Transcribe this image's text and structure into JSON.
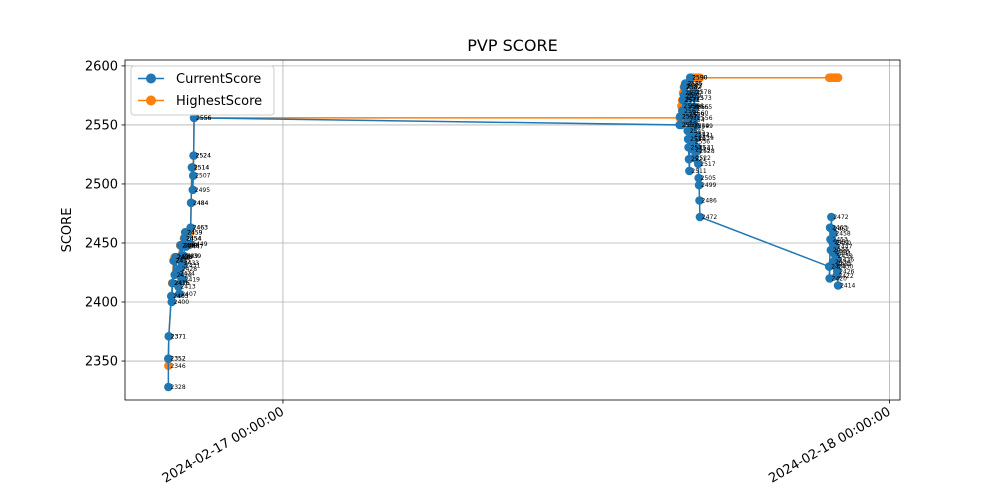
{
  "chart_data": {
    "type": "line",
    "title": "PVP SCORE",
    "xlabel": "",
    "ylabel": "SCORE",
    "ylim": [
      2317,
      2605
    ],
    "xlim": [
      "2024-02-16 17:45",
      "2024-02-18 00:25"
    ],
    "yticks": [
      2350,
      2400,
      2450,
      2500,
      2550,
      2600
    ],
    "xticks": [
      {
        "t": "2024-02-17 00:00",
        "label": "2024-02-17 00:00:00"
      },
      {
        "t": "2024-02-18 00:00",
        "label": "2024-02-18 00:00:00"
      }
    ],
    "grid": true,
    "legend_position": "upper left",
    "series": [
      {
        "name": "CurrentScore",
        "color": "#1f77b4",
        "points": [
          [
            "2024-02-16 19:28",
            2328
          ],
          [
            "2024-02-16 19:28",
            2352
          ],
          [
            "2024-02-16 19:29",
            2371
          ],
          [
            "2024-02-16 19:35",
            2405
          ],
          [
            "2024-02-16 19:36",
            2400
          ],
          [
            "2024-02-16 19:38",
            2416
          ],
          [
            "2024-02-16 19:41",
            2435
          ],
          [
            "2024-02-16 19:43",
            2423
          ],
          [
            "2024-02-16 19:45",
            2438
          ],
          [
            "2024-02-16 19:50",
            2424
          ],
          [
            "2024-02-16 19:52",
            2413
          ],
          [
            "2024-02-16 19:54",
            2407
          ],
          [
            "2024-02-16 19:55",
            2428
          ],
          [
            "2024-02-16 19:57",
            2448
          ],
          [
            "2024-02-16 19:58",
            2439
          ],
          [
            "2024-02-16 20:00",
            2433
          ],
          [
            "2024-02-16 20:01",
            2448
          ],
          [
            "2024-02-16 20:02",
            2419
          ],
          [
            "2024-02-16 20:03",
            2431
          ],
          [
            "2024-02-16 20:05",
            2439
          ],
          [
            "2024-02-16 20:06",
            2454
          ],
          [
            "2024-02-16 20:08",
            2459
          ],
          [
            "2024-02-16 20:10",
            2447
          ],
          [
            "2024-02-16 20:20",
            2449
          ],
          [
            "2024-02-16 20:21",
            2463
          ],
          [
            "2024-02-16 20:22",
            2484
          ],
          [
            "2024-02-16 20:24",
            2514
          ],
          [
            "2024-02-16 20:26",
            2495
          ],
          [
            "2024-02-16 20:27",
            2507
          ],
          [
            "2024-02-16 20:28",
            2524
          ],
          [
            "2024-02-16 20:29",
            2556
          ],
          [
            "2024-02-17 15:42",
            2550
          ],
          [
            "2024-02-17 15:43",
            2557
          ],
          [
            "2024-02-17 15:46",
            2550
          ],
          [
            "2024-02-17 15:48",
            2562
          ],
          [
            "2024-02-17 15:50",
            2571
          ],
          [
            "2024-02-17 15:52",
            2575
          ],
          [
            "2024-02-17 15:53",
            2582
          ],
          [
            "2024-02-17 15:55",
            2585
          ],
          [
            "2024-02-17 15:56",
            2577
          ],
          [
            "2024-02-17 15:57",
            2573
          ],
          [
            "2024-02-17 15:58",
            2566
          ],
          [
            "2024-02-17 15:59",
            2559
          ],
          [
            "2024-02-17 16:00",
            2554
          ],
          [
            "2024-02-17 16:01",
            2545
          ],
          [
            "2024-02-17 16:02",
            2538
          ],
          [
            "2024-02-17 16:03",
            2531
          ],
          [
            "2024-02-17 16:04",
            2521
          ],
          [
            "2024-02-17 16:05",
            2511
          ],
          [
            "2024-02-17 16:07",
            2590
          ],
          [
            "2024-02-17 16:09",
            2560
          ],
          [
            "2024-02-17 16:10",
            2565
          ],
          [
            "2024-02-17 16:11",
            2549
          ],
          [
            "2024-02-17 16:12",
            2542
          ],
          [
            "2024-02-17 16:13",
            2536
          ],
          [
            "2024-02-17 16:14",
            2529
          ],
          [
            "2024-02-17 16:15",
            2522
          ],
          [
            "2024-02-17 16:16",
            2578
          ],
          [
            "2024-02-17 16:17",
            2573
          ],
          [
            "2024-02-17 16:18",
            2565
          ],
          [
            "2024-02-17 16:19",
            2556
          ],
          [
            "2024-02-17 16:20",
            2549
          ],
          [
            "2024-02-17 16:21",
            2541
          ],
          [
            "2024-02-17 16:22",
            2539
          ],
          [
            "2024-02-17 16:23",
            2531
          ],
          [
            "2024-02-17 16:24",
            2528
          ],
          [
            "2024-02-17 16:26",
            2517
          ],
          [
            "2024-02-17 16:27",
            2505
          ],
          [
            "2024-02-17 16:28",
            2499
          ],
          [
            "2024-02-17 16:29",
            2486
          ],
          [
            "2024-02-17 16:30",
            2472
          ],
          [
            "2024-02-17 21:37",
            2430
          ],
          [
            "2024-02-17 21:38",
            2420
          ],
          [
            "2024-02-17 21:39",
            2463
          ],
          [
            "2024-02-17 21:40",
            2453
          ],
          [
            "2024-02-17 21:41",
            2444
          ],
          [
            "2024-02-17 21:42",
            2472
          ],
          [
            "2024-02-17 21:43",
            2462
          ],
          [
            "2024-02-17 21:44",
            2451
          ],
          [
            "2024-02-17 21:45",
            2443
          ],
          [
            "2024-02-17 21:46",
            2434
          ],
          [
            "2024-02-17 21:47",
            2458
          ],
          [
            "2024-02-17 21:48",
            2450
          ],
          [
            "2024-02-17 21:49",
            2441
          ],
          [
            "2024-02-17 21:50",
            2432
          ],
          [
            "2024-02-17 21:51",
            2447
          ],
          [
            "2024-02-17 21:52",
            2439
          ],
          [
            "2024-02-17 21:53",
            2430
          ],
          [
            "2024-02-17 21:54",
            2422
          ],
          [
            "2024-02-17 21:55",
            2436
          ],
          [
            "2024-02-17 21:56",
            2426
          ],
          [
            "2024-02-17 21:58",
            2414
          ]
        ]
      },
      {
        "name": "HighestScore",
        "color": "#ff7f0e",
        "points": [
          [
            "2024-02-16 19:28",
            2346
          ],
          [
            "2024-02-16 19:28",
            2352
          ],
          [
            "2024-02-16 19:29",
            2371
          ],
          [
            "2024-02-16 19:35",
            2405
          ],
          [
            "2024-02-16 19:37",
            2416
          ],
          [
            "2024-02-16 19:40",
            2435
          ],
          [
            "2024-02-16 19:43",
            2438
          ],
          [
            "2024-02-16 19:47",
            2438
          ],
          [
            "2024-02-16 19:52",
            2438
          ],
          [
            "2024-02-16 19:56",
            2448
          ],
          [
            "2024-02-16 20:00",
            2448
          ],
          [
            "2024-02-16 20:05",
            2454
          ],
          [
            "2024-02-16 20:08",
            2459
          ],
          [
            "2024-02-16 20:13",
            2459
          ],
          [
            "2024-02-16 20:20",
            2459
          ],
          [
            "2024-02-16 20:21",
            2463
          ],
          [
            "2024-02-16 20:22",
            2484
          ],
          [
            "2024-02-16 20:24",
            2514
          ],
          [
            "2024-02-16 20:26",
            2514
          ],
          [
            "2024-02-16 20:28",
            2524
          ],
          [
            "2024-02-16 20:29",
            2556
          ],
          [
            "2024-02-17 15:42",
            2556
          ],
          [
            "2024-02-17 15:43",
            2557
          ],
          [
            "2024-02-17 15:46",
            2566
          ],
          [
            "2024-02-17 15:48",
            2571
          ],
          [
            "2024-02-17 15:50",
            2577
          ],
          [
            "2024-02-17 15:52",
            2582
          ],
          [
            "2024-02-17 15:54",
            2583
          ],
          [
            "2024-02-17 15:56",
            2585
          ],
          [
            "2024-02-17 15:58",
            2585
          ],
          [
            "2024-02-17 16:00",
            2585
          ],
          [
            "2024-02-17 16:03",
            2585
          ],
          [
            "2024-02-17 16:05",
            2585
          ],
          [
            "2024-02-17 16:07",
            2590
          ],
          [
            "2024-02-17 16:10",
            2590
          ],
          [
            "2024-02-17 16:13",
            2590
          ],
          [
            "2024-02-17 16:16",
            2590
          ],
          [
            "2024-02-17 16:19",
            2590
          ],
          [
            "2024-02-17 16:22",
            2590
          ],
          [
            "2024-02-17 16:25",
            2590
          ],
          [
            "2024-02-17 16:28",
            2590
          ],
          [
            "2024-02-17 16:30",
            2590
          ],
          [
            "2024-02-17 21:37",
            2590
          ],
          [
            "2024-02-17 21:39",
            2590
          ],
          [
            "2024-02-17 21:41",
            2590
          ],
          [
            "2024-02-17 21:43",
            2590
          ],
          [
            "2024-02-17 21:45",
            2590
          ],
          [
            "2024-02-17 21:47",
            2590
          ],
          [
            "2024-02-17 21:49",
            2590
          ],
          [
            "2024-02-17 21:51",
            2590
          ],
          [
            "2024-02-17 21:53",
            2590
          ],
          [
            "2024-02-17 21:55",
            2590
          ],
          [
            "2024-02-17 21:57",
            2590
          ],
          [
            "2024-02-17 21:58",
            2590
          ]
        ]
      }
    ]
  }
}
